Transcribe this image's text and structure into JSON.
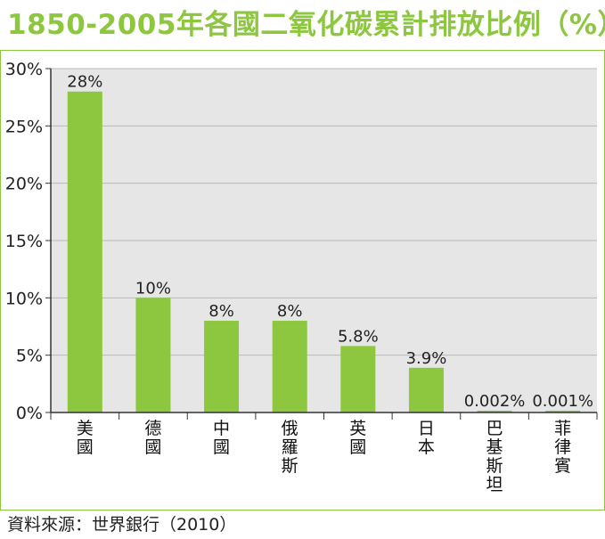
{
  "title": "1850-2005年各國二氧化碳累計排放比例（%）",
  "source": "資料來源：世界銀行（2010）",
  "colors": {
    "accent": "#8dc63f",
    "plot_bg": "#e6e6e7",
    "grid": "#b9b9ba",
    "axis": "#333333"
  },
  "chart_data": {
    "type": "bar",
    "title": "1850-2005年各國二氧化碳累計排放比例（%）",
    "xlabel": "",
    "ylabel": "",
    "ylim": [
      0,
      30
    ],
    "yticks": [
      0,
      5,
      10,
      15,
      20,
      25,
      30
    ],
    "ytick_labels": [
      "0%",
      "5%",
      "10%",
      "15%",
      "20%",
      "25%",
      "30%"
    ],
    "grid": true,
    "categories": [
      "美國",
      "德國",
      "中國",
      "俄羅斯",
      "英國",
      "日本",
      "巴基斯坦",
      "菲律賓"
    ],
    "values": [
      28,
      10,
      8,
      8,
      5.8,
      3.9,
      0.002,
      0.001
    ],
    "data_labels": [
      "28%",
      "10%",
      "8%",
      "8%",
      "5.8%",
      "3.9%",
      "0.002%",
      "0.001%"
    ]
  }
}
